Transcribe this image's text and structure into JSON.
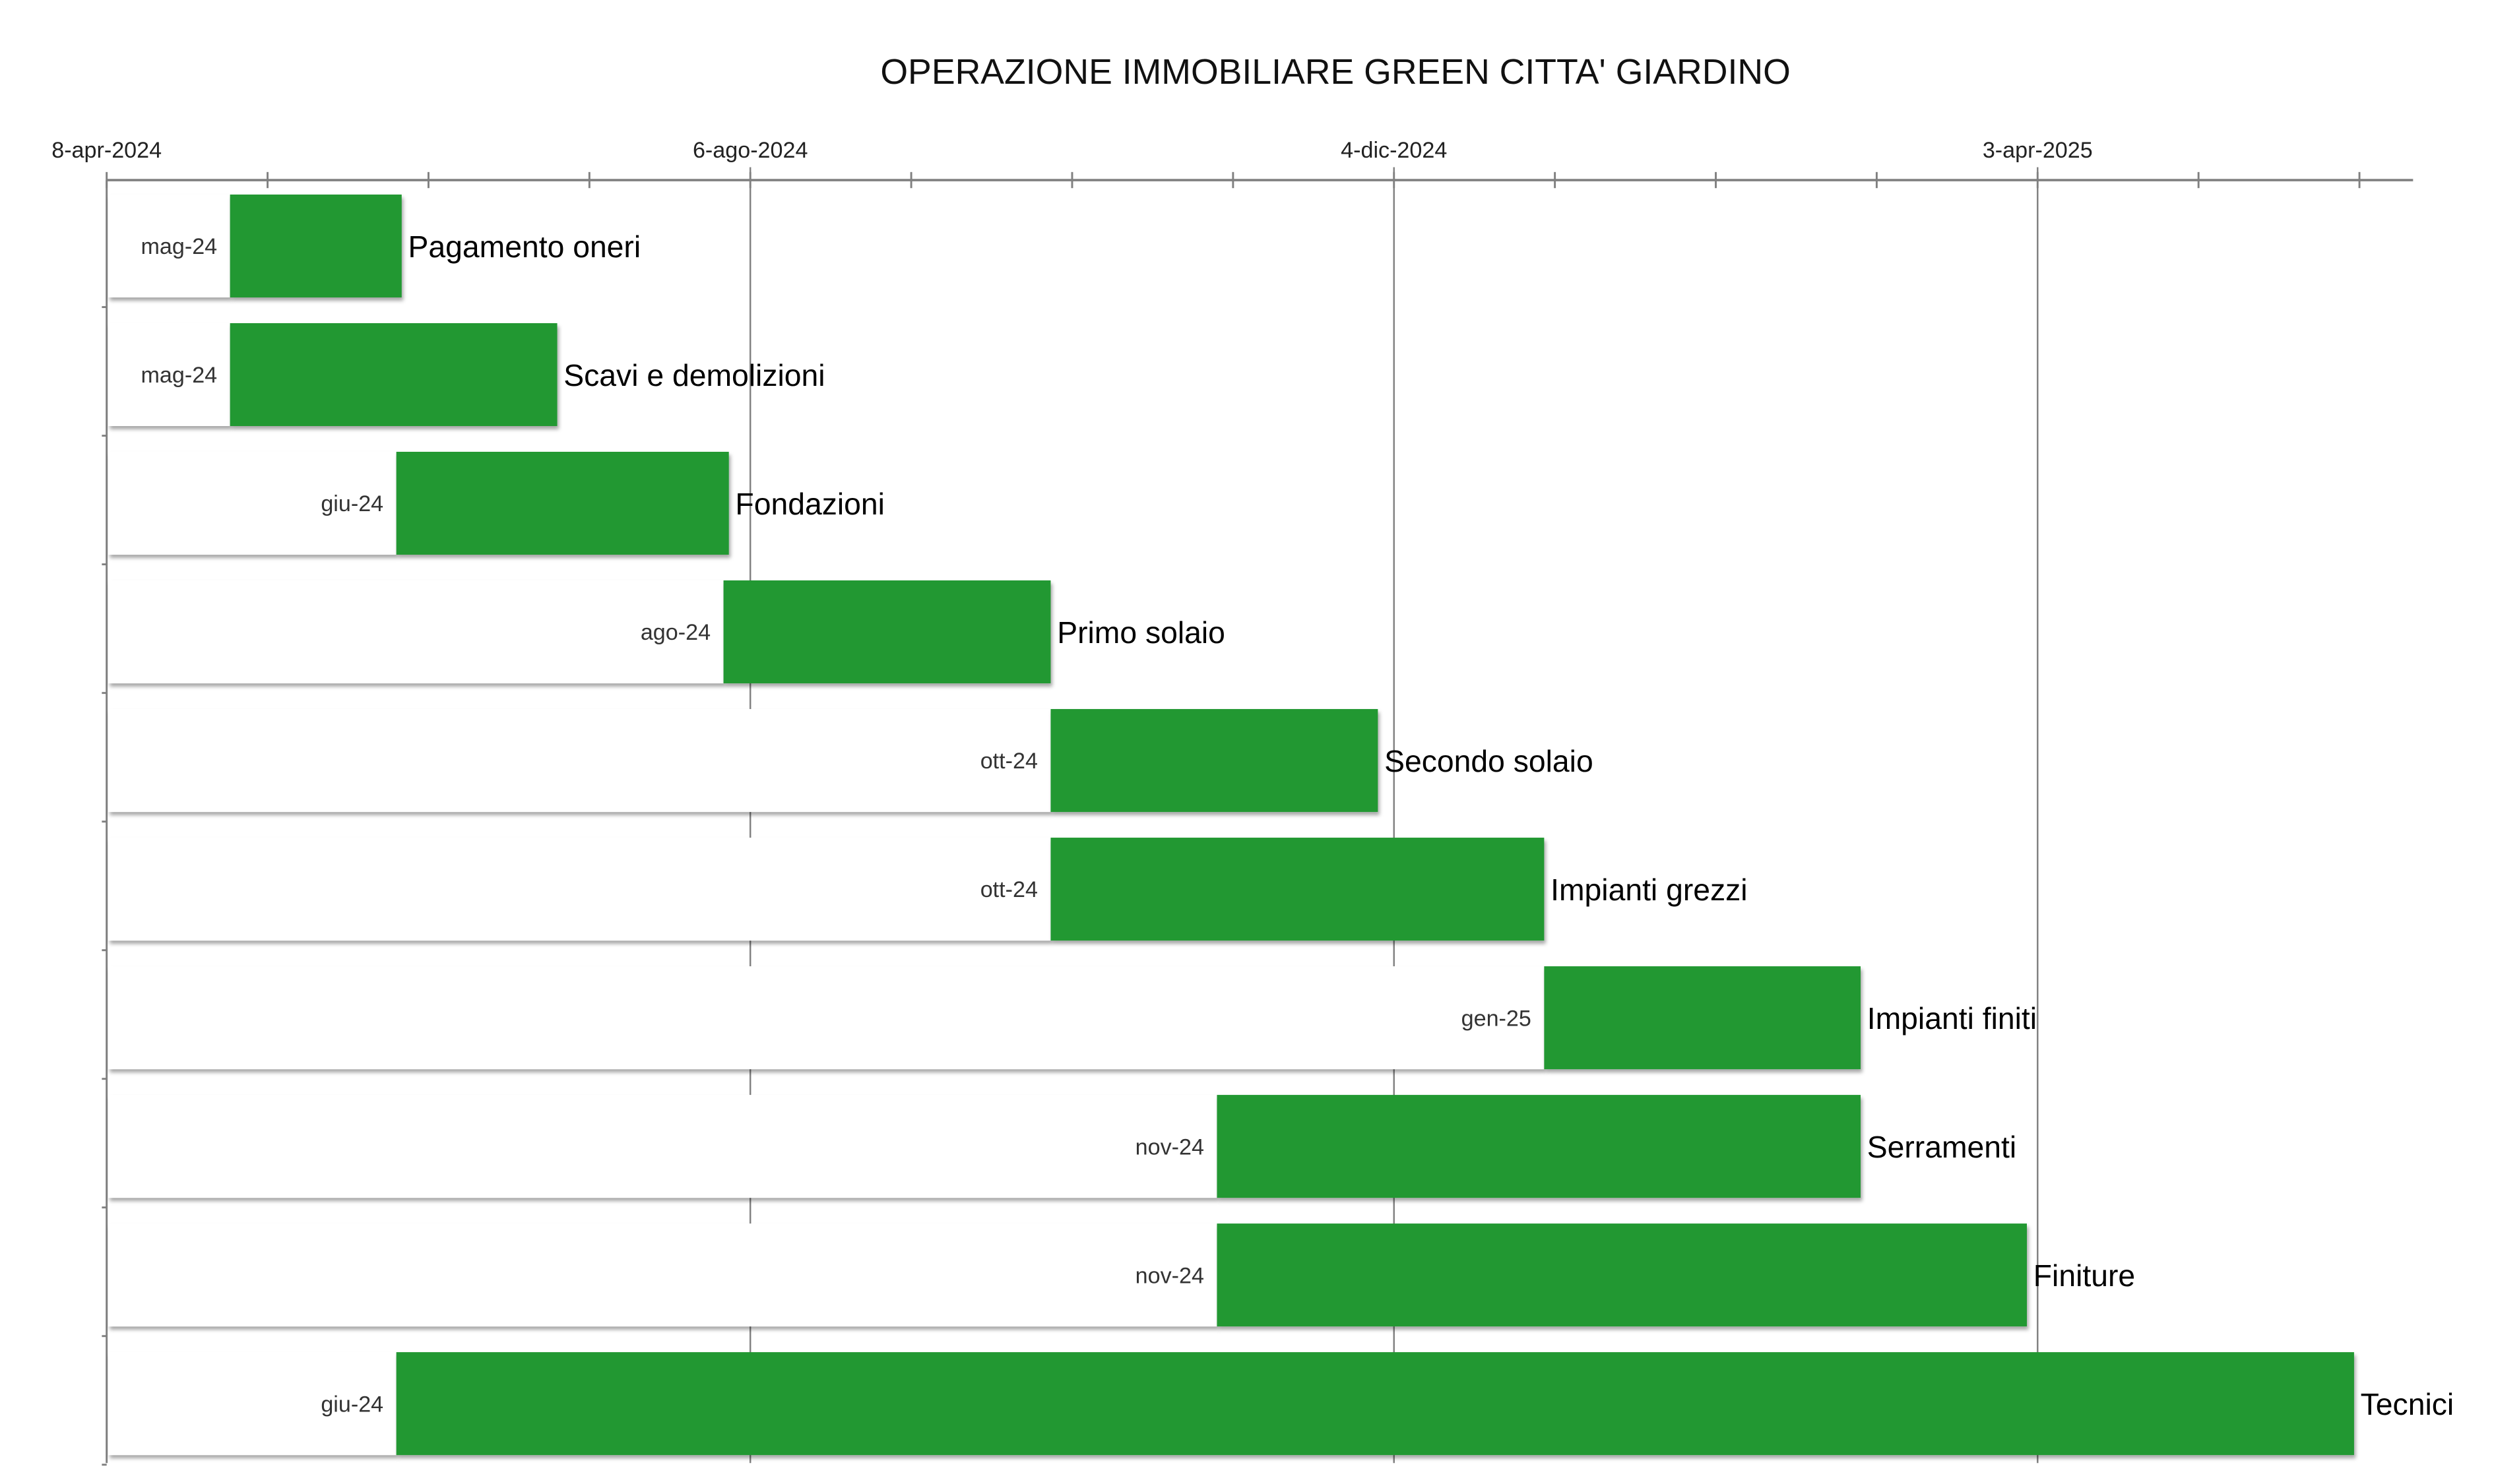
{
  "chart_data": {
    "type": "bar",
    "orientation": "horizontal-gantt",
    "title": "OPERAZIONE IMMOBILIARE GREEN CITTA' GIARDINO",
    "xaxis": {
      "position": "top",
      "min": "2024-04-08",
      "max": "2025-06-12",
      "tick_labels": [
        "8-apr-2024",
        "6-ago-2024",
        "4-dic-2024",
        "3-apr-2025"
      ],
      "major_interval_days": 120,
      "minor_interval_days": 30,
      "grid": true
    },
    "bar_color": "#219832",
    "tasks": [
      {
        "name": "Pagamento oneri",
        "start_label": "mag-24",
        "start": "2024-05-01",
        "end": "2024-06-02"
      },
      {
        "name": "Scavi e demolizioni",
        "start_label": "mag-24",
        "start": "2024-05-01",
        "end": "2024-07-01"
      },
      {
        "name": "Fondazioni",
        "start_label": "giu-24",
        "start": "2024-06-01",
        "end": "2024-08-02"
      },
      {
        "name": "Primo solaio",
        "start_label": "ago-24",
        "start": "2024-08-01",
        "end": "2024-10-01"
      },
      {
        "name": "Secondo solaio",
        "start_label": "ott-24",
        "start": "2024-10-01",
        "end": "2024-12-01"
      },
      {
        "name": "Impianti grezzi",
        "start_label": "ott-24",
        "start": "2024-10-01",
        "end": "2025-01-01"
      },
      {
        "name": "Impianti finiti",
        "start_label": "gen-25",
        "start": "2025-01-01",
        "end": "2025-03-01"
      },
      {
        "name": "Serramenti",
        "start_label": "nov-24",
        "start": "2024-11-01",
        "end": "2025-03-01"
      },
      {
        "name": "Finiture",
        "start_label": "nov-24",
        "start": "2024-11-01",
        "end": "2025-04-01"
      },
      {
        "name": "Tecnici",
        "start_label": "giu-24",
        "start": "2024-06-01",
        "end": "2025-06-01"
      }
    ]
  }
}
